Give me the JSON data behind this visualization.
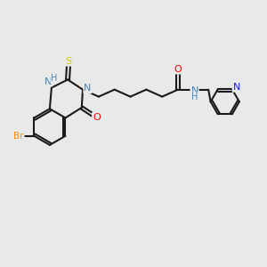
{
  "background_color": "#e8eaea",
  "bond_color": "#1a1a1a",
  "atom_colors": {
    "N": "#4682B4",
    "NH": "#4682B4",
    "O": "#FF0000",
    "S": "#cccc00",
    "Br": "#FF8C00",
    "pyN": "#1a1aFF"
  },
  "figure_size": [
    3.0,
    3.0
  ],
  "dpi": 100,
  "xlim": [
    0,
    12
  ],
  "ylim": [
    0,
    10
  ]
}
